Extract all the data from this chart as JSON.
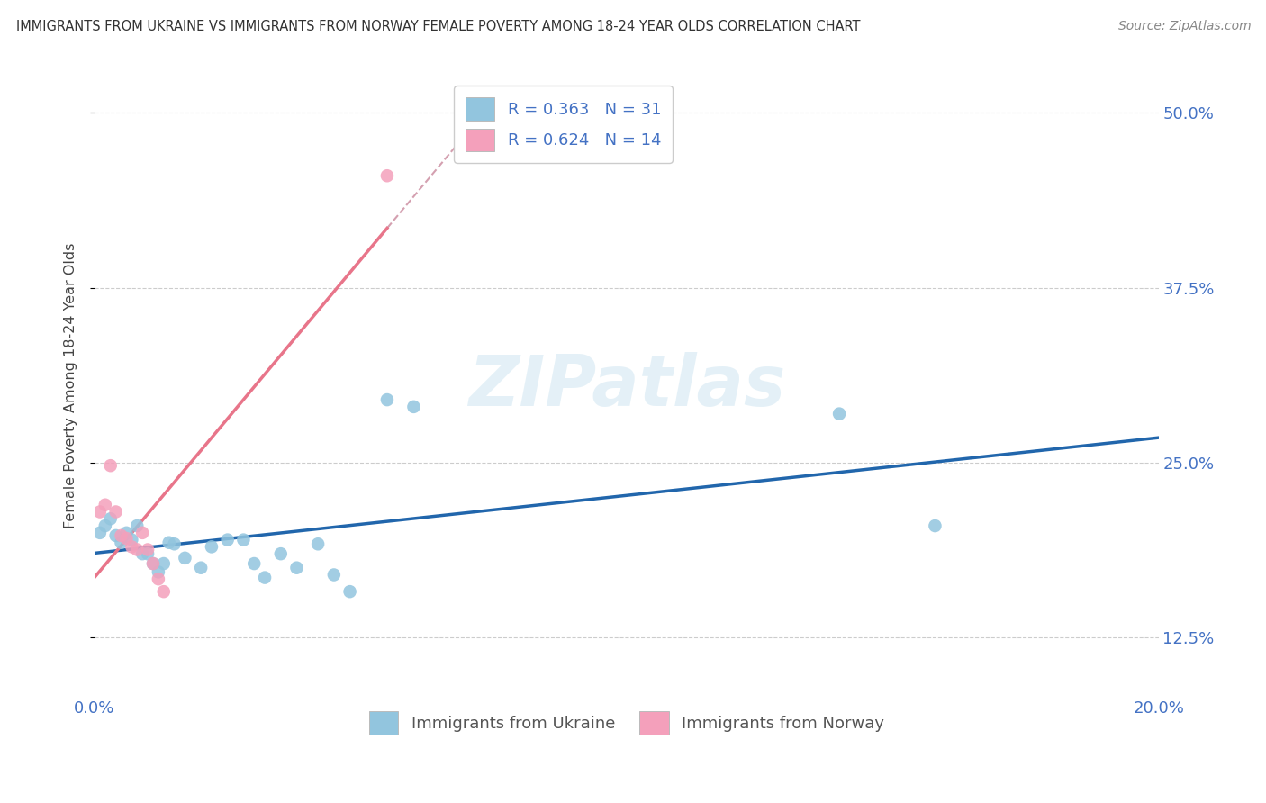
{
  "title": "IMMIGRANTS FROM UKRAINE VS IMMIGRANTS FROM NORWAY FEMALE POVERTY AMONG 18-24 YEAR OLDS CORRELATION CHART",
  "source": "Source: ZipAtlas.com",
  "ylabel": "Female Poverty Among 18-24 Year Olds",
  "xlim": [
    0.0,
    0.2
  ],
  "ylim": [
    0.085,
    0.525
  ],
  "yticks": [
    0.125,
    0.25,
    0.375,
    0.5
  ],
  "ytick_labels": [
    "12.5%",
    "25.0%",
    "37.5%",
    "50.0%"
  ],
  "xticks": [
    0.0,
    0.04,
    0.08,
    0.12,
    0.16,
    0.2
  ],
  "ukraine_R": 0.363,
  "ukraine_N": 31,
  "norway_R": 0.624,
  "norway_N": 14,
  "ukraine_color": "#92c5de",
  "norway_color": "#f4a0bb",
  "ukraine_line_color": "#2166ac",
  "norway_line_color": "#e8758a",
  "norway_dash_color": "#d4a0b0",
  "watermark": "ZIPatlas",
  "ukraine_x": [
    0.001,
    0.002,
    0.003,
    0.004,
    0.005,
    0.006,
    0.007,
    0.008,
    0.009,
    0.01,
    0.011,
    0.012,
    0.013,
    0.014,
    0.015,
    0.017,
    0.02,
    0.022,
    0.025,
    0.028,
    0.03,
    0.032,
    0.035,
    0.038,
    0.042,
    0.045,
    0.048,
    0.055,
    0.06,
    0.14,
    0.158
  ],
  "ukraine_y": [
    0.2,
    0.205,
    0.21,
    0.198,
    0.193,
    0.2,
    0.195,
    0.205,
    0.185,
    0.185,
    0.178,
    0.172,
    0.178,
    0.193,
    0.192,
    0.182,
    0.175,
    0.19,
    0.195,
    0.195,
    0.178,
    0.168,
    0.185,
    0.175,
    0.192,
    0.17,
    0.158,
    0.295,
    0.29,
    0.285,
    0.205
  ],
  "norway_x": [
    0.001,
    0.002,
    0.003,
    0.004,
    0.005,
    0.006,
    0.007,
    0.008,
    0.009,
    0.01,
    0.011,
    0.012,
    0.013,
    0.055
  ],
  "norway_y": [
    0.215,
    0.22,
    0.248,
    0.215,
    0.198,
    0.196,
    0.19,
    0.188,
    0.2,
    0.188,
    0.178,
    0.167,
    0.158,
    0.455
  ],
  "norway_line_x_start": 0.0,
  "norway_line_x_solid_end": 0.055,
  "norway_line_x_dash_end": 0.075,
  "ukraine_line_x_start": 0.0,
  "ukraine_line_x_end": 0.2
}
